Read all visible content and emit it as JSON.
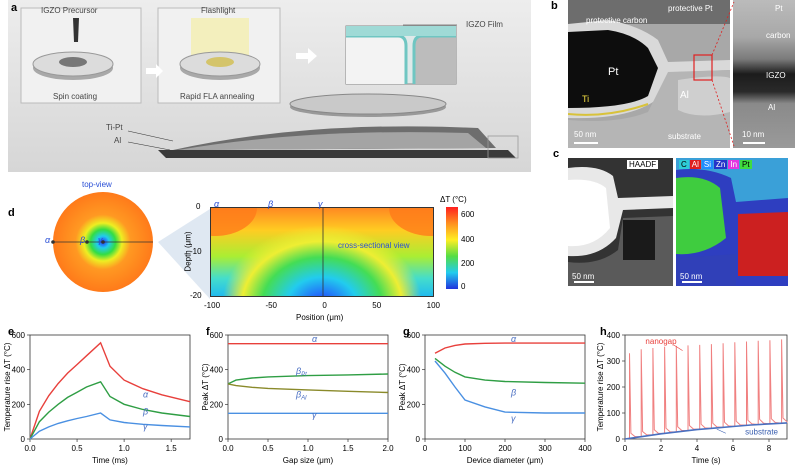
{
  "panel_labels": {
    "a": "a",
    "b": "b",
    "c": "c",
    "d": "d",
    "e": "e",
    "f": "f",
    "g": "g",
    "h": "h"
  },
  "panel_a": {
    "step1": "IGZO Precursor",
    "step1_caption": "Spin coating",
    "step2": "Flashlight",
    "step2_caption": "Rapid FLA annealing",
    "film_label": "IGZO Film",
    "metal_top": "Ti-Pt",
    "metal_bottom": "Al"
  },
  "panel_b": {
    "prot_carbon": "protective carbon",
    "prot_pt": "protective Pt",
    "pt": "Pt",
    "ti": "Ti",
    "al": "Al",
    "substrate": "substrate",
    "scale_left": "50 nm",
    "zoom_pt": "Pt",
    "zoom_carbon": "carbon",
    "zoom_igzo": "IGZO",
    "zoom_al": "Al",
    "scale_right": "10 nm"
  },
  "panel_c": {
    "haadf": "HAADF",
    "scale_left": "50 nm",
    "scale_right": "50 nm",
    "elements": [
      {
        "name": "C",
        "color": "#2ecbd6"
      },
      {
        "name": "Al",
        "color": "#e01e1e"
      },
      {
        "name": "Si",
        "color": "#1e8cff"
      },
      {
        "name": "Zn",
        "color": "#2433c9"
      },
      {
        "name": "In",
        "color": "#e336e0"
      },
      {
        "name": "Pt",
        "color": "#3fdc3f"
      }
    ]
  },
  "panel_d": {
    "top_view": "top-view",
    "greek": [
      "α",
      "β",
      "γ"
    ],
    "cross_section": "cross-sectional view",
    "colorbar_title": "ΔT (°C)",
    "colorbar_ticks": [
      "600",
      "400",
      "200",
      "0"
    ],
    "xlabel": "Position (μm)",
    "ylabel": "Depth (μm)",
    "xticks": [
      "-100",
      "-50",
      "0",
      "50",
      "100"
    ],
    "yticks": [
      "0",
      "-10",
      "-20"
    ]
  },
  "chart_data": [
    {
      "panel": "e",
      "type": "line",
      "xlabel": "Time (ms)",
      "ylabel": "Temperature rise ΔT (°C)",
      "xlim": [
        0,
        1.7
      ],
      "ylim": [
        0,
        600
      ],
      "xticks": [
        "0.0",
        "0.5",
        "1.0",
        "1.5"
      ],
      "yticks": [
        "0",
        "200",
        "400",
        "600"
      ],
      "series": [
        {
          "name": "α",
          "color": "#e8403c",
          "x": [
            0,
            0.1,
            0.2,
            0.3,
            0.4,
            0.5,
            0.6,
            0.75,
            0.85,
            1.0,
            1.2,
            1.4,
            1.7
          ],
          "y": [
            0,
            160,
            250,
            320,
            380,
            430,
            480,
            555,
            420,
            340,
            290,
            255,
            215
          ]
        },
        {
          "name": "β",
          "color": "#2f9e44",
          "x": [
            0,
            0.1,
            0.2,
            0.3,
            0.4,
            0.5,
            0.6,
            0.75,
            0.85,
            1.0,
            1.2,
            1.4,
            1.7
          ],
          "y": [
            0,
            100,
            155,
            200,
            240,
            270,
            300,
            330,
            245,
            200,
            170,
            150,
            130
          ]
        },
        {
          "name": "γ",
          "color": "#4a90e2",
          "x": [
            0,
            0.1,
            0.2,
            0.3,
            0.4,
            0.5,
            0.6,
            0.75,
            0.85,
            1.0,
            1.2,
            1.4,
            1.7
          ],
          "y": [
            0,
            45,
            70,
            90,
            105,
            118,
            130,
            150,
            110,
            95,
            85,
            78,
            70
          ]
        }
      ]
    },
    {
      "panel": "f",
      "type": "line",
      "xlabel": "Gap size (μm)",
      "ylabel": "Peak ΔT (°C)",
      "xlim": [
        0,
        2.0
      ],
      "ylim": [
        0,
        600
      ],
      "xticks": [
        "0.0",
        "0.5",
        "1.0",
        "1.5",
        "2.0"
      ],
      "yticks": [
        "0",
        "200",
        "400",
        "600"
      ],
      "series": [
        {
          "name": "α",
          "color": "#e8403c",
          "x": [
            0,
            0.5,
            1.0,
            1.5,
            2.0
          ],
          "y": [
            550,
            550,
            550,
            550,
            550
          ]
        },
        {
          "name": "βPt",
          "color": "#2f9e44",
          "x": [
            0,
            0.1,
            0.3,
            0.5,
            1.0,
            1.5,
            2.0
          ],
          "y": [
            318,
            340,
            352,
            358,
            366,
            370,
            375
          ]
        },
        {
          "name": "βAl",
          "color": "#8a8a2a",
          "x": [
            0,
            0.1,
            0.3,
            0.5,
            1.0,
            1.5,
            2.0
          ],
          "y": [
            318,
            308,
            298,
            292,
            283,
            275,
            268
          ]
        },
        {
          "name": "γ",
          "color": "#4a90e2",
          "x": [
            0,
            0.5,
            1.0,
            1.5,
            2.0
          ],
          "y": [
            148,
            148,
            148,
            148,
            148
          ]
        }
      ]
    },
    {
      "panel": "g",
      "type": "line",
      "xlabel": "Device diameter (μm)",
      "ylabel": "Peak ΔT (°C)",
      "xlim": [
        0,
        400
      ],
      "ylim": [
        0,
        600
      ],
      "xticks": [
        "0",
        "100",
        "200",
        "300",
        "400"
      ],
      "yticks": [
        "0",
        "200",
        "400",
        "600"
      ],
      "series": [
        {
          "name": "α",
          "color": "#e8403c",
          "x": [
            25,
            50,
            75,
            100,
            150,
            200,
            300,
            400
          ],
          "y": [
            495,
            525,
            540,
            548,
            552,
            553,
            553,
            553
          ]
        },
        {
          "name": "β",
          "color": "#2f9e44",
          "x": [
            25,
            50,
            75,
            100,
            150,
            200,
            300,
            400
          ],
          "y": [
            465,
            420,
            385,
            358,
            340,
            332,
            326,
            322
          ]
        },
        {
          "name": "γ",
          "color": "#4a90e2",
          "x": [
            25,
            50,
            75,
            100,
            150,
            200,
            300,
            400
          ],
          "y": [
            450,
            380,
            300,
            225,
            185,
            155,
            150,
            150
          ]
        }
      ]
    },
    {
      "panel": "h",
      "type": "line",
      "xlabel": "Time (s)",
      "ylabel": "Temperature rise ΔT (°C)",
      "xlim": [
        0,
        9
      ],
      "ylim": [
        0,
        400
      ],
      "xticks": [
        "0",
        "2",
        "4",
        "6",
        "8"
      ],
      "yticks": [
        "0",
        "100",
        "200",
        "300",
        "400"
      ],
      "annotations": [
        "nanogap",
        "substrate"
      ],
      "series": [
        {
          "name": "nanogap",
          "color": "#f08080",
          "pulse_times": [
            0.25,
            0.9,
            1.55,
            2.2,
            2.85,
            3.5,
            4.15,
            4.8,
            5.45,
            6.1,
            6.75,
            7.4,
            8.05,
            8.7
          ],
          "peaks": [
            330,
            345,
            350,
            355,
            358,
            360,
            362,
            365,
            368,
            372,
            375,
            378,
            380,
            383
          ]
        },
        {
          "name": "substrate",
          "color": "#4a70c0",
          "x": [
            0,
            1,
            2,
            3,
            4,
            5,
            6,
            7,
            8,
            9
          ],
          "y": [
            0,
            10,
            20,
            28,
            36,
            42,
            48,
            54,
            58,
            62
          ]
        }
      ]
    }
  ]
}
